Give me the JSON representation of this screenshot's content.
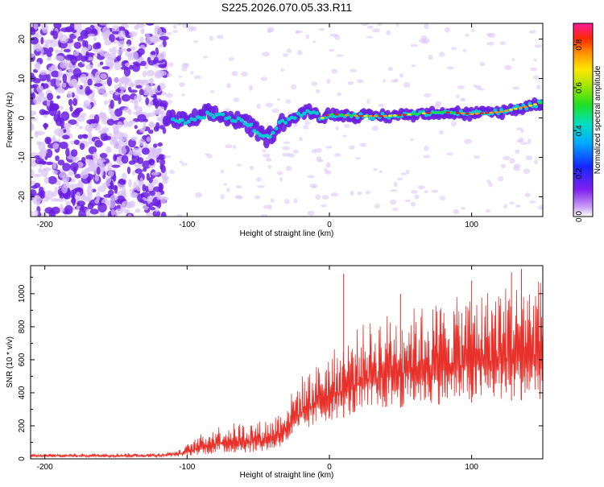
{
  "title": "S225.2026.070.05.33.R11",
  "colors": {
    "snr_line": "#e8312a",
    "spectro_weak": "#d9c2f5",
    "spectro_mid": "#6a1fe0",
    "spectro_strong": "#00d2d2",
    "ridge_peak": "#e61f1f"
  },
  "chart_data": [
    {
      "type": "heatmap",
      "title": "",
      "xlabel": "Height of straight line (km)",
      "ylabel": "Frequency (Hz)",
      "xlim": [
        -210,
        150
      ],
      "ylim": [
        -25,
        24
      ],
      "x_ticks": [
        -200,
        -100,
        0,
        100
      ],
      "x_tick_labels": [
        "-200",
        "-100",
        "0",
        "100"
      ],
      "y_ticks": [
        -20,
        -10,
        0,
        10,
        20
      ],
      "y_tick_labels": [
        "-20",
        "-10",
        "0",
        "10",
        "20"
      ],
      "ridge": {
        "x": [
          -115,
          -100,
          -85,
          -70,
          -60,
          -52,
          -45,
          -40,
          -35,
          -30,
          -25,
          -20,
          -15,
          -10,
          -5,
          0,
          20,
          40,
          60,
          80,
          100,
          120,
          140,
          150
        ],
        "y": [
          0,
          -1,
          1,
          0,
          -1,
          -3,
          -5,
          -4,
          -1,
          -1,
          0,
          1,
          2,
          1,
          0,
          1,
          0.5,
          0.5,
          1,
          1.5,
          1,
          1.5,
          3,
          4
        ]
      },
      "colorbar": {
        "label": "Normalized spectral amplitude",
        "range": [
          0.0,
          0.9
        ],
        "ticks": [
          0.0,
          0.2,
          0.4,
          0.6,
          0.8
        ],
        "tick_labels": [
          "0.0",
          "0.2",
          "0.4",
          "0.6",
          "0.8"
        ]
      }
    },
    {
      "type": "line",
      "title": "",
      "xlabel": "Height of straight line (km)",
      "ylabel": "SNR (10 * v/v)",
      "xlim": [
        -210,
        150
      ],
      "ylim": [
        0,
        1170
      ],
      "x_ticks": [
        -200,
        -100,
        0,
        100
      ],
      "x_tick_labels": [
        "-200",
        "-100",
        "0",
        "100"
      ],
      "y_ticks": [
        0,
        200,
        400,
        600,
        800,
        1000
      ],
      "y_tick_labels": [
        "0",
        "200",
        "400",
        "600",
        "800",
        "1000"
      ],
      "series": [
        {
          "name": "SNR",
          "envelope_x": [
            -210,
            -120,
            -105,
            -90,
            -80,
            -65,
            -50,
            -40,
            -30,
            -20,
            -10,
            0,
            10,
            20,
            40,
            60,
            80,
            100,
            120,
            150
          ],
          "envelope_low": [
            10,
            10,
            15,
            25,
            30,
            35,
            40,
            50,
            90,
            150,
            200,
            230,
            250,
            260,
            300,
            320,
            330,
            340,
            350,
            360
          ],
          "envelope_high": [
            30,
            35,
            55,
            150,
            200,
            220,
            230,
            250,
            350,
            500,
            560,
            650,
            700,
            800,
            880,
            920,
            960,
            1000,
            1050,
            1100
          ],
          "peaks": [
            {
              "x": 10,
              "y": 1120
            },
            {
              "x": 50,
              "y": 1000
            },
            {
              "x": 100,
              "y": 1080
            },
            {
              "x": 128,
              "y": 1130
            },
            {
              "x": 135,
              "y": 1150
            }
          ]
        }
      ]
    }
  ]
}
